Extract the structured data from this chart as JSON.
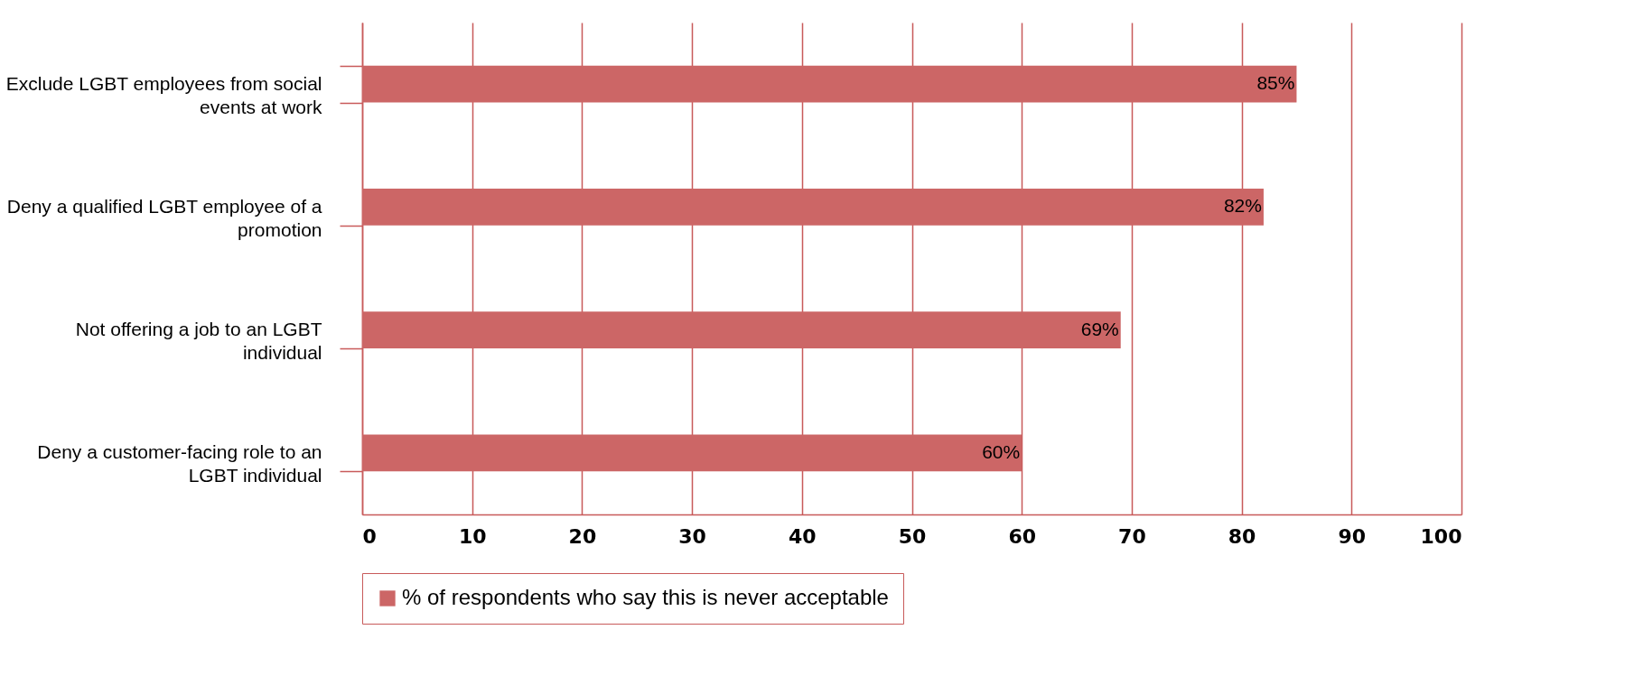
{
  "chart_data": {
    "type": "bar",
    "orientation": "horizontal",
    "categories": [
      "Exclude LGBT employees from social events at work",
      "Deny a qualified LGBT employee of a promotion",
      "Not offering a job to an LGBT individual",
      "Deny a customer-facing role to an LGBT individual"
    ],
    "series": [
      {
        "name": "% of respondents who say this is never acceptable",
        "color": "#cc6666",
        "values": [
          85,
          82,
          69,
          60
        ],
        "value_labels": [
          "85%",
          "82%",
          "69%",
          "60%"
        ]
      }
    ],
    "xlim": [
      0,
      100
    ],
    "xticks": [
      0,
      10,
      20,
      30,
      40,
      50,
      60,
      70,
      80,
      90,
      100
    ],
    "grid": "x",
    "legend": "bottom"
  }
}
